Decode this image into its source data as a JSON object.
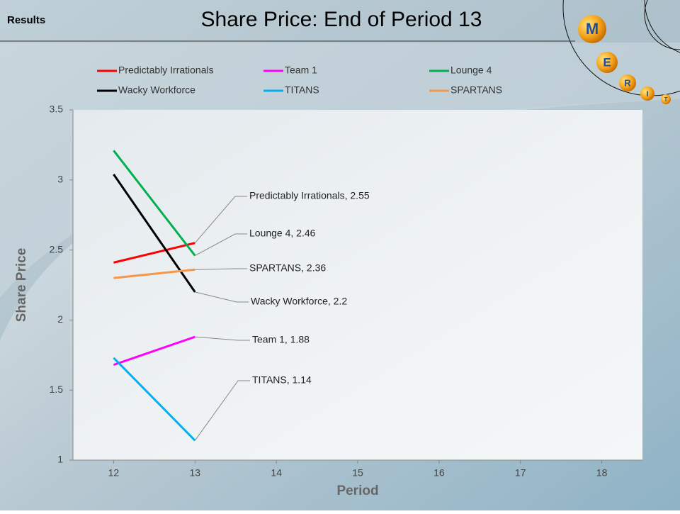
{
  "header": {
    "section": "Results"
  },
  "logo": {
    "letters": [
      "M",
      "E",
      "R",
      "I",
      "T"
    ]
  },
  "chart_data": {
    "type": "line",
    "title": "Share Price: End of Period 13",
    "x_label": "Period",
    "y_label": "Share Price",
    "x": [
      12,
      13,
      14,
      15,
      16,
      17,
      18
    ],
    "xlim": [
      11.5,
      18.5
    ],
    "xticks": [
      12,
      13,
      14,
      15,
      16,
      17,
      18
    ],
    "ylim": [
      1,
      3.5
    ],
    "yticks": [
      1,
      1.5,
      2,
      2.5,
      3,
      3.5
    ],
    "grid": false,
    "legend": "top",
    "series": [
      {
        "name": "Predictably Irrationals",
        "color": "#ff0000",
        "values": [
          2.41,
          2.55,
          null,
          null,
          null,
          null,
          null
        ],
        "value_labels": [
          null,
          "Predictably Irrationals,  2.55",
          null,
          null,
          null,
          null,
          null
        ]
      },
      {
        "name": "Team 1",
        "color": "#ff00ff",
        "values": [
          1.68,
          1.88,
          null,
          null,
          null,
          null,
          null
        ],
        "value_labels": [
          null,
          "Team 1, 1.88",
          null,
          null,
          null,
          null,
          null
        ]
      },
      {
        "name": "Lounge 4",
        "color": "#00b050",
        "values": [
          3.21,
          2.46,
          null,
          null,
          null,
          null,
          null
        ],
        "value_labels": [
          null,
          "Lounge 4, 2.46",
          null,
          null,
          null,
          null,
          null
        ]
      },
      {
        "name": "Wacky Workforce",
        "color": "#000000",
        "values": [
          3.04,
          2.2,
          null,
          null,
          null,
          null,
          null
        ],
        "value_labels": [
          null,
          "Wacky Workforce, 2.2",
          null,
          null,
          null,
          null,
          null
        ]
      },
      {
        "name": "TITANS",
        "color": "#00b0f0",
        "values": [
          1.73,
          1.14,
          null,
          null,
          null,
          null,
          null
        ],
        "value_labels": [
          null,
          "TITANS,  1.14",
          null,
          null,
          null,
          null,
          null
        ]
      },
      {
        "name": "SPARTANS",
        "color": "#f79646",
        "values": [
          2.3,
          2.36,
          null,
          null,
          null,
          null,
          null
        ],
        "value_labels": [
          null,
          "SPARTANS, 2.36",
          null,
          null,
          null,
          null,
          null
        ]
      }
    ]
  }
}
